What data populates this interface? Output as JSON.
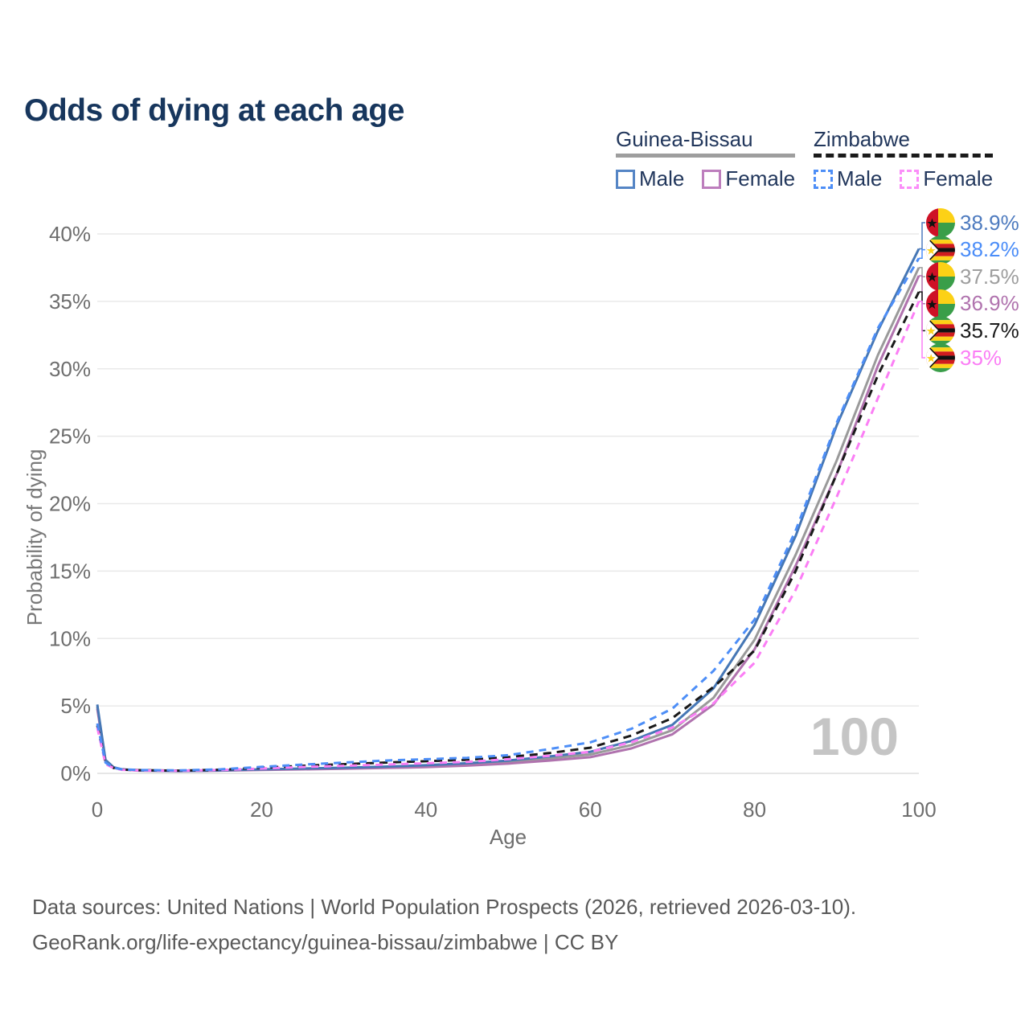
{
  "page": {
    "title": "Odds of dying at each age",
    "watermark": "100"
  },
  "footer": {
    "line1": "Data sources: United Nations | World Population Prospects (2026, retrieved 2026-03-10).",
    "line2": "GeoRank.org/life-expectancy/guinea-bissau/zimbabwe | CC BY"
  },
  "legend": {
    "groups": [
      {
        "name": "Guinea-Bissau",
        "underline_style": "solid",
        "underline_color": "#9e9e9e",
        "items": [
          {
            "label": "Male",
            "box_color": "#5585c5",
            "box_style": "solid"
          },
          {
            "label": "Female",
            "box_color": "#bd7ebd",
            "box_style": "solid"
          }
        ]
      },
      {
        "name": "Zimbabwe",
        "underline_style": "dashed",
        "underline_color": "#1a1a1a",
        "items": [
          {
            "label": "Male",
            "box_color": "#4d8ef7",
            "box_style": "dashed"
          },
          {
            "label": "Female",
            "box_color": "#fb8ef9",
            "box_style": "dashed"
          }
        ]
      }
    ]
  },
  "chart_data": {
    "type": "line",
    "title": "Odds of dying at each age",
    "xlabel": "Age",
    "ylabel": "Probability of dying",
    "xlim": [
      0,
      100
    ],
    "ylim": [
      0,
      40
    ],
    "xticks": [
      0,
      20,
      40,
      60,
      80,
      100
    ],
    "yticks": [
      0,
      5,
      10,
      15,
      20,
      25,
      30,
      35,
      40
    ],
    "ytick_suffix": "%",
    "grid": "horizontal",
    "legend_position": "top-right",
    "x": [
      0,
      1,
      2,
      3,
      5,
      10,
      15,
      20,
      25,
      30,
      35,
      40,
      45,
      50,
      55,
      60,
      65,
      70,
      75,
      80,
      85,
      90,
      95,
      100
    ],
    "series": [
      {
        "name": "Guinea-Bissau Total",
        "country": "Guinea-Bissau",
        "sex": "both",
        "color": "#9a9a9a",
        "dash": "none",
        "values": [
          4.95,
          0.95,
          0.44,
          0.29,
          0.21,
          0.17,
          0.21,
          0.28,
          0.33,
          0.38,
          0.45,
          0.53,
          0.66,
          0.84,
          1.1,
          1.4,
          2.1,
          3.2,
          5.6,
          9.9,
          16.2,
          23.2,
          31.0,
          37.5
        ]
      },
      {
        "name": "Guinea-Bissau Female",
        "country": "Guinea-Bissau",
        "sex": "female",
        "color": "#b073ae",
        "dash": "none",
        "values": [
          4.8,
          0.9,
          0.42,
          0.28,
          0.2,
          0.16,
          0.2,
          0.25,
          0.3,
          0.34,
          0.4,
          0.46,
          0.57,
          0.72,
          0.95,
          1.2,
          1.85,
          2.9,
          5.1,
          9.2,
          15.4,
          22.2,
          30.2,
          36.9
        ]
      },
      {
        "name": "Guinea-Bissau Male",
        "country": "Guinea-Bissau",
        "sex": "male",
        "color": "#4677b5",
        "dash": "none",
        "values": [
          5.1,
          1.0,
          0.45,
          0.3,
          0.22,
          0.18,
          0.22,
          0.3,
          0.36,
          0.42,
          0.5,
          0.6,
          0.75,
          0.95,
          1.25,
          1.6,
          2.4,
          3.6,
          6.3,
          11.0,
          17.6,
          25.8,
          32.8,
          38.9
        ]
      },
      {
        "name": "Zimbabwe Total",
        "country": "Zimbabwe",
        "sex": "both",
        "color": "#1a1a1a",
        "dash": "10 7",
        "values": [
          3.55,
          0.75,
          0.4,
          0.28,
          0.24,
          0.2,
          0.27,
          0.42,
          0.56,
          0.68,
          0.8,
          0.9,
          1.0,
          1.2,
          1.5,
          1.9,
          2.8,
          4.1,
          6.4,
          9.1,
          15.0,
          22.2,
          29.5,
          35.7
        ]
      },
      {
        "name": "Zimbabwe Female",
        "country": "Zimbabwe",
        "sex": "female",
        "color": "#fb7ef5",
        "dash": "9 7",
        "values": [
          3.4,
          0.7,
          0.38,
          0.26,
          0.22,
          0.19,
          0.25,
          0.36,
          0.47,
          0.56,
          0.65,
          0.75,
          0.85,
          1.05,
          1.3,
          1.6,
          2.3,
          3.4,
          5.2,
          8.2,
          13.6,
          20.5,
          27.8,
          35.0
        ]
      },
      {
        "name": "Zimbabwe Male",
        "country": "Zimbabwe",
        "sex": "male",
        "color": "#4d8ef7",
        "dash": "9 7",
        "values": [
          3.7,
          0.8,
          0.42,
          0.3,
          0.25,
          0.22,
          0.3,
          0.48,
          0.65,
          0.8,
          0.95,
          1.05,
          1.15,
          1.35,
          1.8,
          2.3,
          3.3,
          4.8,
          7.6,
          11.4,
          18.0,
          26.0,
          33.0,
          38.2
        ]
      }
    ],
    "end_labels": [
      {
        "text": "38.9%",
        "flag": "guinea-bissau",
        "color": "#4e7bbf",
        "series": "Guinea-Bissau Male",
        "value_pct": 38.9
      },
      {
        "text": "38.2%",
        "flag": "zimbabwe",
        "color": "#4b8df8",
        "series": "Zimbabwe Male",
        "value_pct": 38.2
      },
      {
        "text": "37.5%",
        "flag": "guinea-bissau",
        "color": "#9e9e9e",
        "series": "Guinea-Bissau Total",
        "value_pct": 37.5
      },
      {
        "text": "36.9%",
        "flag": "guinea-bissau",
        "color": "#b073ae",
        "series": "Guinea-Bissau Female",
        "value_pct": 36.9
      },
      {
        "text": "35.7%",
        "flag": "zimbabwe",
        "color": "#1a1a1a",
        "series": "Zimbabwe Total",
        "value_pct": 35.7
      },
      {
        "text": "35%",
        "flag": "zimbabwe",
        "color": "#fb7ef5",
        "series": "Zimbabwe Female",
        "value_pct": 35.0
      }
    ]
  }
}
